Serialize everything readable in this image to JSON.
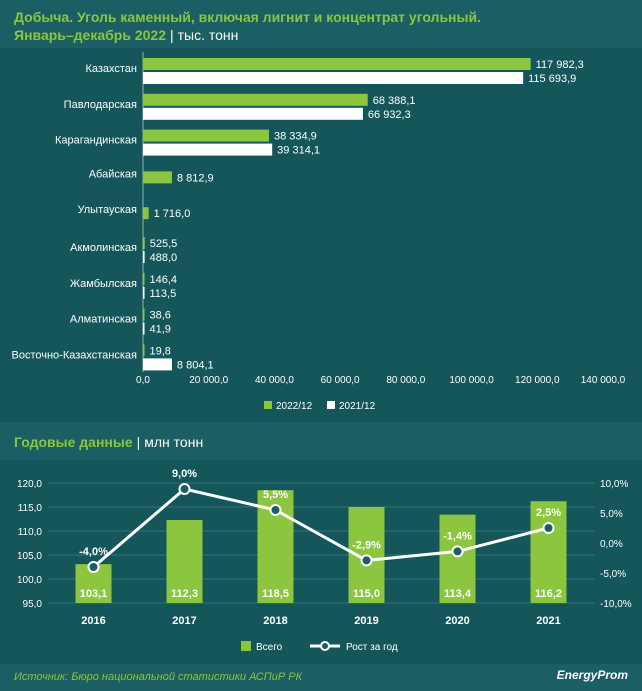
{
  "header": {
    "title_line1": "Добыча. Уголь каменный, включая лигнит и концентрат угольный.",
    "title_line2_main": "Январь–декабрь 2022",
    "separator": "|",
    "title_line2_unit": "тыс. тонн"
  },
  "annual_header": {
    "title": "Годовые данные",
    "separator": "|",
    "unit": "млн тонн"
  },
  "footer": {
    "source": "Источник: Бюро национальной статистики АСПиР РК",
    "logo": "EnergyProm"
  },
  "colors": {
    "background": "#1b5e63",
    "panel": "#15565b",
    "green": "#8cc63f",
    "white": "#ffffff"
  },
  "chart_data": [
    {
      "type": "bar",
      "orientation": "horizontal",
      "categories": [
        "Казахстан",
        "Павлодарская",
        "Карагандинская",
        "Абайская",
        "Улытауская",
        "Акмолинская",
        "Жамбылская",
        "Алматинская",
        "Восточно-Казахстанская"
      ],
      "series": [
        {
          "name": "2022/12",
          "color": "#8cc63f",
          "values": [
            117982.3,
            68388.1,
            38334.9,
            8812.9,
            1716.0,
            525.5,
            146.4,
            38.6,
            19.8
          ],
          "labels": [
            "117 982,3",
            "68 388,1",
            "38 334,9",
            "8 812,9",
            "1 716,0",
            "525,5",
            "146,4",
            "38,6",
            "19,8"
          ]
        },
        {
          "name": "2021/12",
          "color": "#ffffff",
          "values": [
            115693.9,
            66932.3,
            39314.1,
            null,
            null,
            488.0,
            113.5,
            41.9,
            8804.1
          ],
          "labels": [
            "115 693,9",
            "66 932,3",
            "39 314,1",
            "",
            "",
            "488,0",
            "113,5",
            "41,9",
            "8 804,1"
          ]
        }
      ],
      "xlim": [
        0,
        140000
      ],
      "xticks": [
        0,
        20000,
        40000,
        60000,
        80000,
        100000,
        120000,
        140000
      ],
      "xtick_labels": [
        "0,0",
        "20 000,0",
        "40 000,0",
        "60 000,0",
        "80 000,0",
        "100 000,0",
        "120 000,0",
        "140 000,0"
      ],
      "legend_position": "bottom"
    },
    {
      "type": "bar+line",
      "categories": [
        "2016",
        "2017",
        "2018",
        "2019",
        "2020",
        "2021"
      ],
      "series": [
        {
          "name": "Всего",
          "type": "bar",
          "color": "#8cc63f",
          "values": [
            103.1,
            112.3,
            118.5,
            115.0,
            113.4,
            116.2
          ],
          "labels": [
            "103,1",
            "112,3",
            "118,5",
            "115,0",
            "113,4",
            "116,2"
          ]
        },
        {
          "name": "Рост за год",
          "type": "line",
          "color": "#ffffff",
          "axis": "right",
          "values": [
            -4.0,
            9.0,
            5.5,
            -2.9,
            -1.4,
            2.5
          ],
          "labels": [
            "-4,0%",
            "9,0%",
            "5,5%",
            "-2,9%",
            "-1,4%",
            "2,5%"
          ]
        }
      ],
      "ylim": [
        95,
        120
      ],
      "yticks": [
        95,
        100,
        105,
        110,
        115,
        120
      ],
      "ytick_labels": [
        "95,0",
        "100,0",
        "105,0",
        "110,0",
        "115,0",
        "120,0"
      ],
      "y2lim": [
        -10,
        10
      ],
      "y2ticks": [
        -10,
        -5,
        0,
        5,
        10
      ],
      "y2tick_labels": [
        "-10,0%",
        "-5,0%",
        "0,0%",
        "5,0%",
        "10,0%"
      ],
      "legend_position": "bottom"
    }
  ]
}
